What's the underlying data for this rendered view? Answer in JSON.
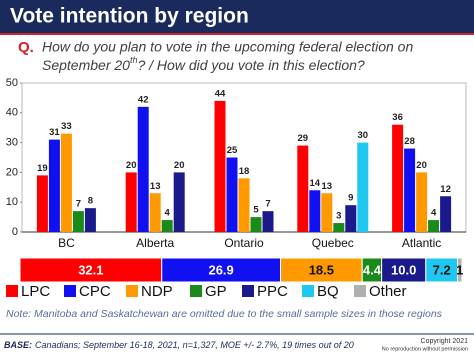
{
  "chart_data": {
    "type": "bar",
    "title": "Vote intention by region",
    "question_marker": "Q.",
    "question": [
      "How do you plan to vote in the upcoming federal election on",
      "September 20",
      "th",
      "? / How did you vote in this election?"
    ],
    "categories": [
      "BC",
      "Alberta",
      "Ontario",
      "Quebec",
      "Atlantic"
    ],
    "series": [
      {
        "name": "LPC",
        "color": "#ff0000",
        "values": [
          19,
          20,
          44,
          29,
          36
        ]
      },
      {
        "name": "CPC",
        "color": "#1010f0",
        "values": [
          31,
          42,
          25,
          14,
          28
        ]
      },
      {
        "name": "NDP",
        "color": "#ff9900",
        "values": [
          33,
          13,
          18,
          13,
          20
        ]
      },
      {
        "name": "GP",
        "color": "#1a8a1a",
        "values": [
          7,
          4,
          5,
          3,
          4
        ]
      },
      {
        "name": "PPC",
        "color": "#1a1a8c",
        "values": [
          8,
          20,
          7,
          9,
          12
        ]
      },
      {
        "name": "BQ",
        "color": "#1ec8f0",
        "values": [
          null,
          null,
          null,
          30,
          null
        ]
      },
      {
        "name": "Other",
        "color": "#b0b0b0",
        "values": [
          null,
          null,
          null,
          null,
          null
        ]
      }
    ],
    "national": {
      "values": [
        32.1,
        26.9,
        18.5,
        4.4,
        10.0,
        7.2,
        1
      ],
      "value_labels": [
        "32.1",
        "26.9",
        "18.5",
        "4.4",
        "10.0",
        "7.2",
        "1"
      ]
    },
    "ylim": [
      0,
      50
    ],
    "yticks": [
      0,
      10,
      20,
      30,
      40,
      50
    ],
    "note": "Note: Manitoba and Saskatchewan are omitted due to the small sample sizes in those regions",
    "base_label": "BASE:",
    "base": "Canadians; September 16-18, 2021, n=1,327, MOE +/- 2.7%, 19 times out of 20",
    "copyright": "Copyright 2021",
    "copyright_note": "No reproduction without permission"
  }
}
